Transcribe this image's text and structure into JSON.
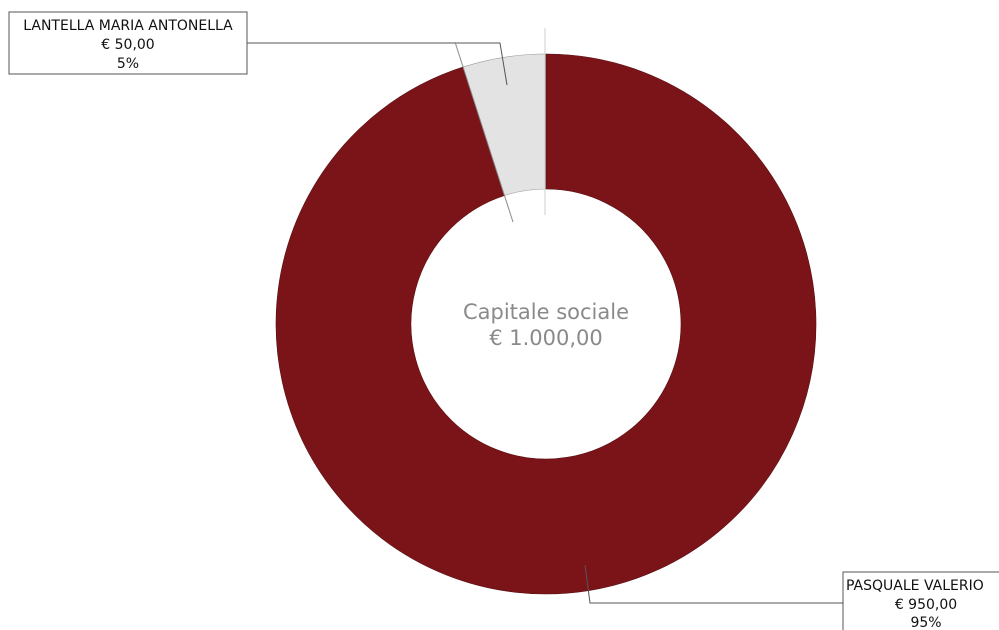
{
  "chart_data": {
    "type": "pie",
    "donut": true,
    "center_label": [
      "Capitale sociale",
      "€ 1.000,00"
    ],
    "total": 1000,
    "slices": [
      {
        "name": "LANTELLA MARIA ANTONELLA",
        "value": 50,
        "value_label": "€ 50,00",
        "percent_label": "5%",
        "color": "#e3e3e3"
      },
      {
        "name": "PASQUALE VALERIO",
        "value": 950,
        "value_label": "€ 950,00",
        "percent_label": "95%",
        "color": "#7b1419"
      }
    ]
  }
}
